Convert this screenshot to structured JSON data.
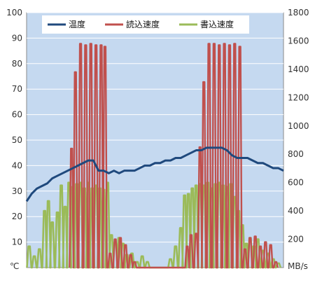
{
  "chart_data": {
    "type": "line",
    "title": "",
    "y_left": {
      "unit_label": "℃",
      "ticks": [
        10,
        20,
        30,
        40,
        50,
        60,
        70,
        80,
        90,
        100
      ],
      "ylim": [
        0,
        100
      ]
    },
    "y_right": {
      "unit_label": "MB/s",
      "ticks": [
        200,
        400,
        600,
        800,
        1000,
        1200,
        1400,
        1600,
        1800
      ],
      "ylim": [
        0,
        1800
      ]
    },
    "x": {
      "tick_labels": [],
      "range": [
        0,
        100
      ]
    },
    "grid": true,
    "legend_position": "top",
    "colors": {
      "plot_bg": "#c5d9f0",
      "temperature": "#1f497d",
      "read": "#c0504d",
      "write": "#9bbb59"
    },
    "series": [
      {
        "name": "温度",
        "axis": "left",
        "x": [
          0,
          2,
          4,
          6,
          8,
          10,
          12,
          14,
          16,
          18,
          20,
          22,
          24,
          26,
          28,
          30,
          32,
          34,
          36,
          38,
          40,
          42,
          44,
          46,
          48,
          50,
          52,
          54,
          56,
          58,
          60,
          62,
          64,
          66,
          68,
          70,
          72,
          74,
          76,
          78,
          80,
          82,
          84,
          86,
          88,
          90,
          92,
          94,
          96,
          98,
          100
        ],
        "values": [
          26,
          29,
          31,
          32,
          33,
          35,
          36,
          37,
          38,
          39,
          40,
          41,
          42,
          42,
          38,
          38,
          37,
          38,
          37,
          38,
          38,
          38,
          39,
          40,
          40,
          41,
          41,
          42,
          42,
          43,
          43,
          44,
          45,
          46,
          46,
          47,
          47,
          47,
          47,
          46,
          44,
          43,
          43,
          43,
          42,
          41,
          41,
          40,
          39,
          39,
          38
        ]
      },
      {
        "name": "読込速度",
        "axis": "right",
        "peaks": [
          {
            "x": 17.5,
            "value": 840
          },
          {
            "x": 19,
            "value": 1380
          },
          {
            "x": 21,
            "value": 1580
          },
          {
            "x": 23,
            "value": 1570
          },
          {
            "x": 25,
            "value": 1580
          },
          {
            "x": 27,
            "value": 1570
          },
          {
            "x": 29,
            "value": 1570
          },
          {
            "x": 30.5,
            "value": 1560
          },
          {
            "x": 32.5,
            "value": 100
          },
          {
            "x": 34.5,
            "value": 200
          },
          {
            "x": 36.5,
            "value": 210
          },
          {
            "x": 38.5,
            "value": 160
          },
          {
            "x": 40.5,
            "value": 90
          },
          {
            "x": 42,
            "value": 40
          },
          {
            "x": 62.5,
            "value": 150
          },
          {
            "x": 64,
            "value": 230
          },
          {
            "x": 66,
            "value": 240
          },
          {
            "x": 67.5,
            "value": 850
          },
          {
            "x": 69,
            "value": 1310
          },
          {
            "x": 71,
            "value": 1580
          },
          {
            "x": 73,
            "value": 1580
          },
          {
            "x": 75,
            "value": 1570
          },
          {
            "x": 77,
            "value": 1580
          },
          {
            "x": 79,
            "value": 1570
          },
          {
            "x": 81,
            "value": 1580
          },
          {
            "x": 83,
            "value": 1560
          },
          {
            "x": 85,
            "value": 130
          },
          {
            "x": 87,
            "value": 210
          },
          {
            "x": 89,
            "value": 220
          },
          {
            "x": 91,
            "value": 150
          },
          {
            "x": 93,
            "value": 180
          },
          {
            "x": 95,
            "value": 160
          },
          {
            "x": 97,
            "value": 40
          }
        ]
      },
      {
        "name": "書込速度",
        "axis": "right",
        "peaks": [
          {
            "x": 1,
            "value": 150
          },
          {
            "x": 3,
            "value": 80
          },
          {
            "x": 5,
            "value": 130
          },
          {
            "x": 7,
            "value": 400
          },
          {
            "x": 8.5,
            "value": 470
          },
          {
            "x": 10,
            "value": 320
          },
          {
            "x": 12,
            "value": 390
          },
          {
            "x": 13.5,
            "value": 580
          },
          {
            "x": 15,
            "value": 430
          },
          {
            "x": 16.5,
            "value": 600
          },
          {
            "x": 18,
            "value": 570
          },
          {
            "x": 19.5,
            "value": 590
          },
          {
            "x": 21,
            "value": 600
          },
          {
            "x": 22.5,
            "value": 560
          },
          {
            "x": 24,
            "value": 600
          },
          {
            "x": 25.5,
            "value": 560
          },
          {
            "x": 27,
            "value": 580
          },
          {
            "x": 28.5,
            "value": 560
          },
          {
            "x": 30,
            "value": 550
          },
          {
            "x": 31.5,
            "value": 600
          },
          {
            "x": 33,
            "value": 230
          },
          {
            "x": 34.5,
            "value": 180
          },
          {
            "x": 36,
            "value": 210
          },
          {
            "x": 37.5,
            "value": 170
          },
          {
            "x": 39,
            "value": 90
          },
          {
            "x": 41,
            "value": 100
          },
          {
            "x": 43,
            "value": 40
          },
          {
            "x": 45,
            "value": 80
          },
          {
            "x": 47,
            "value": 40
          },
          {
            "x": 56,
            "value": 60
          },
          {
            "x": 58,
            "value": 150
          },
          {
            "x": 60,
            "value": 280
          },
          {
            "x": 61.5,
            "value": 510
          },
          {
            "x": 63,
            "value": 520
          },
          {
            "x": 64.5,
            "value": 560
          },
          {
            "x": 66,
            "value": 580
          },
          {
            "x": 67.5,
            "value": 590
          },
          {
            "x": 69,
            "value": 580
          },
          {
            "x": 70.5,
            "value": 600
          },
          {
            "x": 72,
            "value": 560
          },
          {
            "x": 73.5,
            "value": 590
          },
          {
            "x": 75,
            "value": 600
          },
          {
            "x": 76.5,
            "value": 580
          },
          {
            "x": 78,
            "value": 570
          },
          {
            "x": 79.5,
            "value": 590
          },
          {
            "x": 81,
            "value": 500
          },
          {
            "x": 82.5,
            "value": 400
          },
          {
            "x": 84,
            "value": 300
          },
          {
            "x": 85.5,
            "value": 170
          },
          {
            "x": 87,
            "value": 210
          },
          {
            "x": 88.5,
            "value": 150
          },
          {
            "x": 90,
            "value": 200
          },
          {
            "x": 92,
            "value": 120
          },
          {
            "x": 94,
            "value": 100
          },
          {
            "x": 96,
            "value": 60
          },
          {
            "x": 98,
            "value": 30
          }
        ]
      }
    ]
  }
}
